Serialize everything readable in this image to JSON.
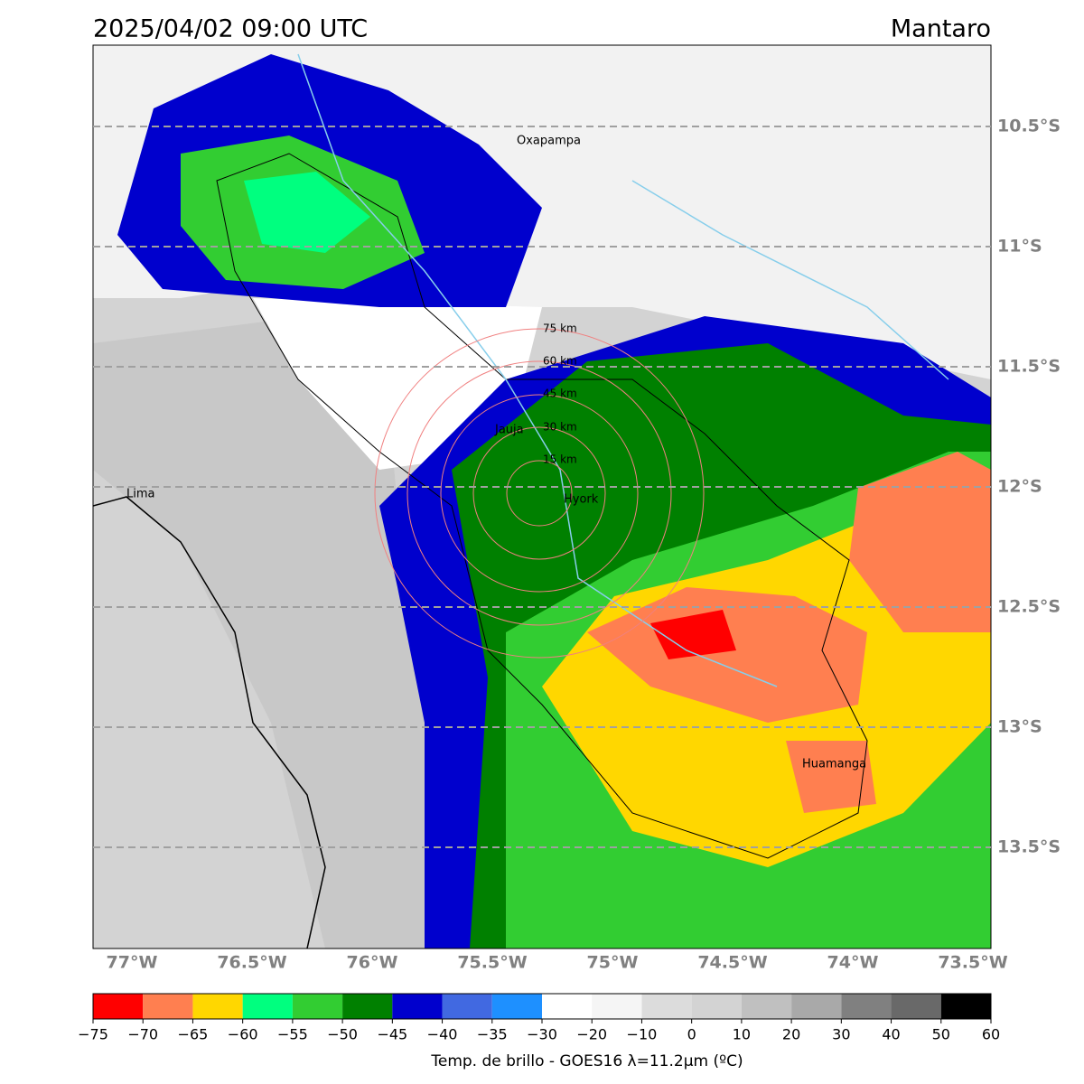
{
  "header": {
    "title": "2025/04/02 09:00 UTC",
    "region": "Mantaro"
  },
  "map": {
    "lat_labels": [
      "10.5°S",
      "11°S",
      "11.5°S",
      "12°S",
      "12.5°S",
      "13°S",
      "13.5°S"
    ],
    "lon_labels": [
      "77°W",
      "76.5°W",
      "76°W",
      "75.5°W",
      "75°W",
      "74.5°W",
      "74°W",
      "73.5°W"
    ],
    "places": [
      "Oxapampa",
      "Jauja",
      "Hyork",
      "Lima",
      "Huamanga"
    ],
    "rings": [
      "15 km",
      "30 km",
      "45 km",
      "60 km",
      "75 km"
    ]
  },
  "colorbar": {
    "label": "Temp. de brillo - GOES16 λ=11.2μm (ºC)",
    "ticks": [
      {
        "value": -75,
        "label": "−75"
      },
      {
        "value": -70,
        "label": "−70"
      },
      {
        "value": -65,
        "label": "−65"
      },
      {
        "value": -60,
        "label": "−60"
      },
      {
        "value": -55,
        "label": "−55"
      },
      {
        "value": -50,
        "label": "−50"
      },
      {
        "value": -45,
        "label": "−45"
      },
      {
        "value": -40,
        "label": "−40"
      },
      {
        "value": -35,
        "label": "−35"
      },
      {
        "value": -30,
        "label": "−30"
      },
      {
        "value": -20,
        "label": "−20"
      },
      {
        "value": -10,
        "label": "−10"
      },
      0,
      10,
      20,
      30,
      40,
      50,
      60
    ],
    "colors": [
      "#ff0000",
      "#ff7f50",
      "#ffd700",
      "#00ff7f",
      "#32cd32",
      "#008000",
      "#0000cd",
      "#4169e1",
      "#1e90ff",
      "#ffffff",
      "#f5f5f5",
      "#dcdcdc",
      "#d3d3d3",
      "#c0c0c0",
      "#a9a9a9",
      "#808080",
      "#696969",
      "#000000"
    ]
  }
}
